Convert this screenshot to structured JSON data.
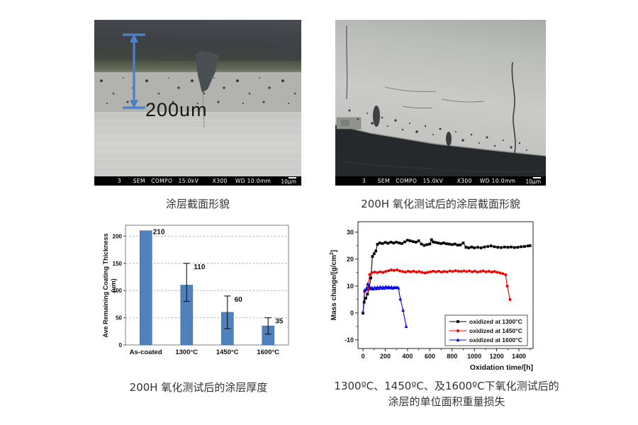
{
  "sem_left": {
    "caption": "涂层截面形貌",
    "measurement_label": "200um",
    "status_text": "3      SEM   COMPO   15.0kV       X300    WD 10.0mm",
    "scale_label": "10μm",
    "arrow_color": "#4d7fca"
  },
  "sem_right": {
    "caption": "200H 氧化测试后的涂层截面形貌",
    "status_text": "3      SEM   COMPO   15.0kV       X300    WD 10.0mm",
    "scale_label": "10μm"
  },
  "bar_chart_caption": "200H 氧化测试后的涂层厚度",
  "line_chart_caption": {
    "line1": "1300ºC、1450ºC、及1600ºC下氧化测试后的",
    "line2": "涂层的单位面积重量损失"
  },
  "chart_data": [
    {
      "type": "bar",
      "categories": [
        "As-coated",
        "1300°C",
        "1450°C",
        "1600°C"
      ],
      "values": [
        210,
        110,
        60,
        35
      ],
      "error_low": [
        null,
        80,
        30,
        20
      ],
      "error_high": [
        null,
        150,
        90,
        50
      ],
      "value_labels": [
        "210",
        "110",
        "60",
        "35"
      ],
      "ylabel": "Ave Remaining Coating Thickness",
      "ylabel2": "(um)",
      "yticks": [
        0,
        50,
        100,
        150,
        200
      ],
      "ylim": [
        0,
        220
      ],
      "grid": true,
      "bar_color": "#4f81bd",
      "bar_edge": "#3d699c"
    },
    {
      "type": "line",
      "xlabel": "Oxidation time/[h]",
      "ylabel": "Mass change/[g/cm²]",
      "xticks": [
        0,
        200,
        400,
        600,
        800,
        1000,
        1200,
        1400
      ],
      "yticks": [
        -10,
        0,
        10,
        20,
        30
      ],
      "xlim": [
        -45,
        1527
      ],
      "ylim": [
        -13.2,
        33.9
      ],
      "x_minor_step": 100,
      "y_minor_step": 5,
      "legend_position": "inside-bottom-right",
      "series": [
        {
          "name": "oxidized at 1300°C",
          "color": "#000000",
          "marker": "square",
          "points": [
            [
              0,
              0
            ],
            [
              10,
              4
            ],
            [
              25,
              5.5
            ],
            [
              40,
              7
            ],
            [
              55,
              9
            ],
            [
              70,
              13
            ],
            [
              85,
              21
            ],
            [
              100,
              22
            ],
            [
              115,
              23
            ],
            [
              130,
              25.5
            ],
            [
              150,
              26
            ],
            [
              175,
              25.8
            ],
            [
              200,
              26.2
            ],
            [
              225,
              25.9
            ],
            [
              250,
              26.3
            ],
            [
              275,
              26.0
            ],
            [
              300,
              26.3
            ],
            [
              325,
              26.0
            ],
            [
              350,
              25.8
            ],
            [
              375,
              26.4
            ],
            [
              400,
              27
            ],
            [
              425,
              26.8
            ],
            [
              450,
              26.5
            ],
            [
              475,
              26.3
            ],
            [
              500,
              26.8
            ],
            [
              525,
              25.6
            ],
            [
              550,
              25.1
            ],
            [
              575,
              25.4
            ],
            [
              600,
              25.6
            ],
            [
              615,
              27.2
            ],
            [
              630,
              26.4
            ],
            [
              650,
              26.2
            ],
            [
              675,
              26.0
            ],
            [
              700,
              25.8
            ],
            [
              725,
              26.0
            ],
            [
              750,
              25.7
            ],
            [
              775,
              25.6
            ],
            [
              800,
              25.4
            ],
            [
              825,
              25.6
            ],
            [
              850,
              25.2
            ],
            [
              875,
              25.3
            ],
            [
              900,
              26.0
            ],
            [
              925,
              24.4
            ],
            [
              950,
              24.2
            ],
            [
              975,
              24.5
            ],
            [
              1000,
              24.2
            ],
            [
              1030,
              24.4
            ],
            [
              1060,
              24.2
            ],
            [
              1090,
              24.5
            ],
            [
              1120,
              24.7
            ],
            [
              1150,
              24.9
            ],
            [
              1180,
              24.6
            ],
            [
              1210,
              24.4
            ],
            [
              1240,
              24.3
            ],
            [
              1270,
              24.5
            ],
            [
              1300,
              24.4
            ],
            [
              1330,
              24.5
            ],
            [
              1360,
              24.3
            ],
            [
              1390,
              24.4
            ],
            [
              1420,
              24.6
            ],
            [
              1450,
              24.7
            ],
            [
              1480,
              24.9
            ],
            [
              1500,
              25.0
            ]
          ]
        },
        {
          "name": "oxidized at 1450°C",
          "color": "#ee0000",
          "marker": "circle",
          "points": [
            [
              0,
              0
            ],
            [
              15,
              8
            ],
            [
              30,
              8.5
            ],
            [
              45,
              9.2
            ],
            [
              60,
              14.3
            ],
            [
              80,
              15
            ],
            [
              105,
              15.2
            ],
            [
              130,
              15.0
            ],
            [
              155,
              15.3
            ],
            [
              180,
              15.1
            ],
            [
              205,
              15.4
            ],
            [
              230,
              15.7
            ],
            [
              255,
              16.0
            ],
            [
              280,
              15.8
            ],
            [
              305,
              16.0
            ],
            [
              330,
              15.6
            ],
            [
              355,
              15.4
            ],
            [
              380,
              15.2
            ],
            [
              405,
              15.5
            ],
            [
              430,
              15.3
            ],
            [
              455,
              15.5
            ],
            [
              480,
              15.2
            ],
            [
              505,
              15.4
            ],
            [
              530,
              15.1
            ],
            [
              555,
              14.9
            ],
            [
              580,
              15.1
            ],
            [
              605,
              15.3
            ],
            [
              630,
              15.5
            ],
            [
              655,
              15.3
            ],
            [
              680,
              15.5
            ],
            [
              705,
              15.2
            ],
            [
              730,
              15.4
            ],
            [
              755,
              15.3
            ],
            [
              780,
              15.6
            ],
            [
              805,
              15.4
            ],
            [
              830,
              15.7
            ],
            [
              855,
              15.5
            ],
            [
              880,
              15.4
            ],
            [
              905,
              15.6
            ],
            [
              930,
              15.4
            ],
            [
              955,
              15.6
            ],
            [
              980,
              15.3
            ],
            [
              1005,
              15.5
            ],
            [
              1030,
              15.2
            ],
            [
              1055,
              15.4
            ],
            [
              1080,
              15.6
            ],
            [
              1105,
              15.3
            ],
            [
              1130,
              15.5
            ],
            [
              1155,
              15.2
            ],
            [
              1180,
              15.4
            ],
            [
              1205,
              15.1
            ],
            [
              1230,
              14.9
            ],
            [
              1255,
              14.6
            ],
            [
              1280,
              14.2
            ],
            [
              1295,
              10
            ],
            [
              1320,
              5
            ]
          ]
        },
        {
          "name": "oxidized at 1600°C",
          "color": "#0000ee",
          "marker": "triangle-up",
          "points": [
            [
              0,
              0
            ],
            [
              15,
              8.5
            ],
            [
              30,
              9.0
            ],
            [
              42,
              10.8
            ],
            [
              55,
              10.0
            ],
            [
              68,
              9.0
            ],
            [
              80,
              9.4
            ],
            [
              92,
              8.9
            ],
            [
              105,
              9.5
            ],
            [
              118,
              9.0
            ],
            [
              130,
              9.6
            ],
            [
              142,
              9.1
            ],
            [
              155,
              9.7
            ],
            [
              168,
              9.2
            ],
            [
              180,
              9.6
            ],
            [
              192,
              9.2
            ],
            [
              205,
              9.8
            ],
            [
              218,
              9.3
            ],
            [
              230,
              9.7
            ],
            [
              242,
              9.3
            ],
            [
              255,
              9.6
            ],
            [
              268,
              9.2
            ],
            [
              280,
              9.5
            ],
            [
              292,
              9.4
            ],
            [
              305,
              9.5
            ],
            [
              318,
              9.3
            ],
            [
              335,
              5.2
            ],
            [
              360,
              1.0
            ],
            [
              388,
              -5.0
            ]
          ]
        }
      ]
    }
  ]
}
